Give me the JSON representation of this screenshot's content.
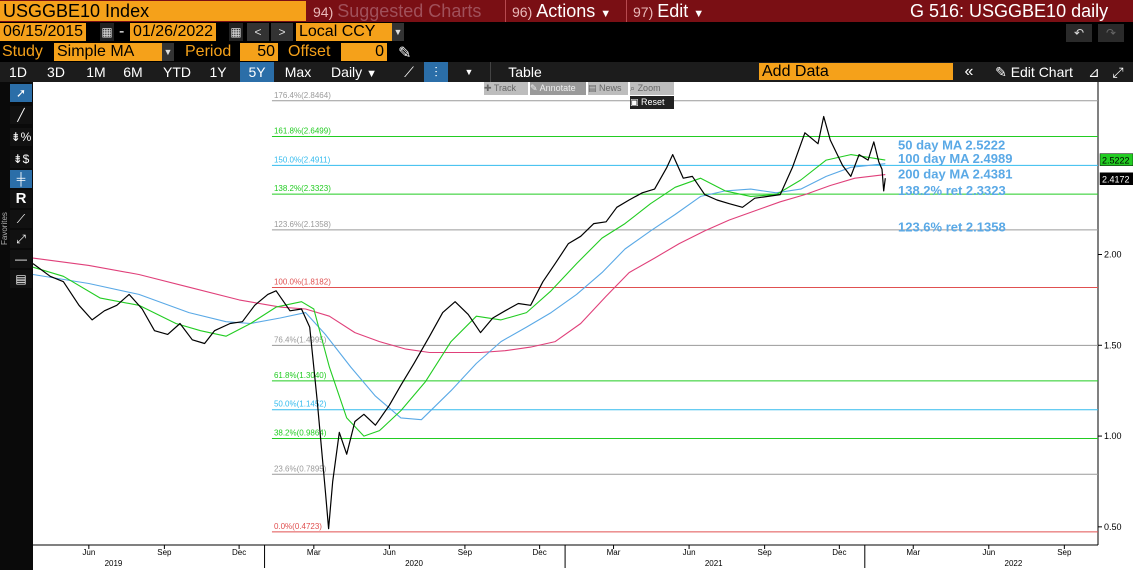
{
  "header": {
    "ticker": "USGGBE10 Index",
    "suggested_num": "94)",
    "suggested_label": "Suggested Charts",
    "actions_num": "96)",
    "actions_label": "Actions",
    "edit_num": "97)",
    "edit_label": "Edit",
    "right_title": "G 516: USGGBE10 daily"
  },
  "dates": {
    "start": "06/15/2015",
    "end": "01/26/2022",
    "separator": "-",
    "currency": "Local CCY"
  },
  "study": {
    "study_label": "Study",
    "study_value": "Simple MA",
    "period_label": "Period",
    "period_value": "50",
    "offset_label": "Offset",
    "offset_value": "0"
  },
  "toolbar": {
    "ranges": [
      "1D",
      "3D",
      "1M",
      "6M",
      "YTD",
      "1Y",
      "5Y",
      "Max"
    ],
    "selected_range": "5Y",
    "frequency": "Daily",
    "table_label": "Table",
    "add_data_placeholder": "Add Data",
    "edit_chart_label": "Edit Chart"
  },
  "float_toolbar": {
    "track": "Track",
    "annotate": "Annotate",
    "news": "News",
    "zoom": "Zoom",
    "reset": "Reset"
  },
  "side_tools": {
    "favorites_label": "Favorites"
  },
  "colors": {
    "price": "#000000",
    "ma50": "#22cc22",
    "ma100": "#5aa9e6",
    "ma200": "#e0407a",
    "header_bar": "#7a0f14",
    "accent_orange": "#f5a11a"
  },
  "chart_data": {
    "type": "line",
    "title": "USGGBE10 daily",
    "xlabel": "",
    "ylabel": "",
    "x_range": [
      "2019-03-25",
      "2022-10-12"
    ],
    "ylim": [
      0.4,
      2.95
    ],
    "y_ticks": [
      "0.50",
      "1.00",
      "1.50",
      "2.00"
    ],
    "x_ticks": [
      {
        "date": "2019-06-01",
        "label": "Jun"
      },
      {
        "date": "2019-09-01",
        "label": "Sep"
      },
      {
        "date": "2019-12-01",
        "label": "Dec"
      },
      {
        "date": "2020-03-01",
        "label": "Mar"
      },
      {
        "date": "2020-06-01",
        "label": "Jun"
      },
      {
        "date": "2020-09-01",
        "label": "Sep"
      },
      {
        "date": "2020-12-01",
        "label": "Dec"
      },
      {
        "date": "2021-03-01",
        "label": "Mar"
      },
      {
        "date": "2021-06-01",
        "label": "Jun"
      },
      {
        "date": "2021-09-01",
        "label": "Sep"
      },
      {
        "date": "2021-12-01",
        "label": "Dec"
      },
      {
        "date": "2022-03-01",
        "label": "Mar"
      },
      {
        "date": "2022-06-01",
        "label": "Jun"
      },
      {
        "date": "2022-09-01",
        "label": "Sep"
      }
    ],
    "year_labels": [
      {
        "date": "2019-07-01",
        "label": "2019"
      },
      {
        "date": "2020-07-01",
        "label": "2020"
      },
      {
        "date": "2021-07-01",
        "label": "2021"
      },
      {
        "date": "2022-07-01",
        "label": "2022"
      }
    ],
    "series": [
      {
        "name": "USGGBE10",
        "color": "#000000",
        "points": [
          [
            "2019-03-25",
            1.95
          ],
          [
            "2019-04-15",
            1.88
          ],
          [
            "2019-05-01",
            1.85
          ],
          [
            "2019-05-20",
            1.72
          ],
          [
            "2019-06-05",
            1.64
          ],
          [
            "2019-06-20",
            1.69
          ],
          [
            "2019-07-05",
            1.72
          ],
          [
            "2019-07-20",
            1.78
          ],
          [
            "2019-08-05",
            1.7
          ],
          [
            "2019-08-20",
            1.58
          ],
          [
            "2019-09-05",
            1.56
          ],
          [
            "2019-09-20",
            1.62
          ],
          [
            "2019-10-05",
            1.53
          ],
          [
            "2019-10-20",
            1.51
          ],
          [
            "2019-11-01",
            1.58
          ],
          [
            "2019-11-20",
            1.62
          ],
          [
            "2019-12-05",
            1.63
          ],
          [
            "2019-12-20",
            1.72
          ],
          [
            "2020-01-05",
            1.78
          ],
          [
            "2020-01-15",
            1.8
          ],
          [
            "2020-02-01",
            1.69
          ],
          [
            "2020-02-15",
            1.7
          ],
          [
            "2020-02-25",
            1.6
          ],
          [
            "2020-03-05",
            1.2
          ],
          [
            "2020-03-10",
            0.95
          ],
          [
            "2020-03-15",
            0.7
          ],
          [
            "2020-03-19",
            0.49
          ],
          [
            "2020-03-24",
            0.75
          ],
          [
            "2020-04-01",
            1.02
          ],
          [
            "2020-04-10",
            0.9
          ],
          [
            "2020-04-20",
            1.08
          ],
          [
            "2020-05-01",
            1.12
          ],
          [
            "2020-05-15",
            1.06
          ],
          [
            "2020-06-01",
            1.17
          ],
          [
            "2020-06-15",
            1.28
          ],
          [
            "2020-07-01",
            1.4
          ],
          [
            "2020-07-20",
            1.55
          ],
          [
            "2020-08-05",
            1.68
          ],
          [
            "2020-08-20",
            1.74
          ],
          [
            "2020-09-05",
            1.67
          ],
          [
            "2020-09-20",
            1.57
          ],
          [
            "2020-10-05",
            1.65
          ],
          [
            "2020-10-20",
            1.69
          ],
          [
            "2020-11-05",
            1.73
          ],
          [
            "2020-11-20",
            1.72
          ],
          [
            "2020-12-05",
            1.85
          ],
          [
            "2020-12-20",
            1.95
          ],
          [
            "2021-01-05",
            2.06
          ],
          [
            "2021-01-20",
            2.1
          ],
          [
            "2021-02-05",
            2.17
          ],
          [
            "2021-02-20",
            2.18
          ],
          [
            "2021-03-05",
            2.26
          ],
          [
            "2021-03-20",
            2.3
          ],
          [
            "2021-04-05",
            2.34
          ],
          [
            "2021-04-20",
            2.36
          ],
          [
            "2021-05-05",
            2.48
          ],
          [
            "2021-05-12",
            2.55
          ],
          [
            "2021-05-25",
            2.42
          ],
          [
            "2021-06-05",
            2.43
          ],
          [
            "2021-06-20",
            2.33
          ],
          [
            "2021-07-05",
            2.3
          ],
          [
            "2021-07-20",
            2.28
          ],
          [
            "2021-08-05",
            2.26
          ],
          [
            "2021-08-20",
            2.31
          ],
          [
            "2021-09-05",
            2.32
          ],
          [
            "2021-09-20",
            2.33
          ],
          [
            "2021-10-05",
            2.48
          ],
          [
            "2021-10-20",
            2.67
          ],
          [
            "2021-11-05",
            2.61
          ],
          [
            "2021-11-12",
            2.76
          ],
          [
            "2021-11-20",
            2.63
          ],
          [
            "2021-12-05",
            2.49
          ],
          [
            "2021-12-15",
            2.43
          ],
          [
            "2021-12-25",
            2.55
          ],
          [
            "2022-01-05",
            2.52
          ],
          [
            "2022-01-12",
            2.62
          ],
          [
            "2022-01-18",
            2.51
          ],
          [
            "2022-01-22",
            2.47
          ],
          [
            "2022-01-24",
            2.35
          ],
          [
            "2022-01-26",
            2.42
          ]
        ]
      },
      {
        "name": "50 day MA",
        "color": "#22cc22",
        "points": [
          [
            "2019-03-25",
            1.93
          ],
          [
            "2019-05-01",
            1.88
          ],
          [
            "2019-06-15",
            1.76
          ],
          [
            "2019-08-01",
            1.72
          ],
          [
            "2019-09-15",
            1.62
          ],
          [
            "2019-10-15",
            1.58
          ],
          [
            "2019-11-15",
            1.55
          ],
          [
            "2019-12-15",
            1.62
          ],
          [
            "2020-01-15",
            1.71
          ],
          [
            "2020-02-15",
            1.74
          ],
          [
            "2020-03-01",
            1.7
          ],
          [
            "2020-03-20",
            1.38
          ],
          [
            "2020-04-10",
            1.1
          ],
          [
            "2020-05-01",
            1.0
          ],
          [
            "2020-05-20",
            1.03
          ],
          [
            "2020-06-15",
            1.14
          ],
          [
            "2020-07-15",
            1.3
          ],
          [
            "2020-08-15",
            1.52
          ],
          [
            "2020-09-15",
            1.66
          ],
          [
            "2020-10-15",
            1.64
          ],
          [
            "2020-11-15",
            1.68
          ],
          [
            "2020-12-15",
            1.8
          ],
          [
            "2021-01-15",
            1.95
          ],
          [
            "2021-02-15",
            2.09
          ],
          [
            "2021-03-15",
            2.17
          ],
          [
            "2021-04-15",
            2.28
          ],
          [
            "2021-05-15",
            2.37
          ],
          [
            "2021-06-15",
            2.42
          ],
          [
            "2021-07-15",
            2.35
          ],
          [
            "2021-08-15",
            2.32
          ],
          [
            "2021-09-15",
            2.33
          ],
          [
            "2021-10-15",
            2.41
          ],
          [
            "2021-11-15",
            2.52
          ],
          [
            "2021-12-15",
            2.55
          ],
          [
            "2022-01-26",
            2.52
          ]
        ]
      },
      {
        "name": "100 day MA",
        "color": "#5aa9e6",
        "points": [
          [
            "2019-03-25",
            1.89
          ],
          [
            "2019-06-01",
            1.84
          ],
          [
            "2019-08-01",
            1.78
          ],
          [
            "2019-10-01",
            1.68
          ],
          [
            "2019-11-15",
            1.63
          ],
          [
            "2019-12-15",
            1.62
          ],
          [
            "2020-01-20",
            1.65
          ],
          [
            "2020-02-20",
            1.68
          ],
          [
            "2020-03-15",
            1.56
          ],
          [
            "2020-04-15",
            1.38
          ],
          [
            "2020-05-15",
            1.22
          ],
          [
            "2020-06-15",
            1.1
          ],
          [
            "2020-07-10",
            1.09
          ],
          [
            "2020-08-15",
            1.25
          ],
          [
            "2020-09-15",
            1.4
          ],
          [
            "2020-10-15",
            1.52
          ],
          [
            "2020-11-15",
            1.6
          ],
          [
            "2020-12-15",
            1.68
          ],
          [
            "2021-01-15",
            1.78
          ],
          [
            "2021-02-15",
            1.9
          ],
          [
            "2021-03-15",
            2.03
          ],
          [
            "2021-04-15",
            2.13
          ],
          [
            "2021-05-15",
            2.22
          ],
          [
            "2021-06-15",
            2.32
          ],
          [
            "2021-07-15",
            2.35
          ],
          [
            "2021-08-15",
            2.36
          ],
          [
            "2021-09-15",
            2.34
          ],
          [
            "2021-10-15",
            2.36
          ],
          [
            "2021-11-15",
            2.43
          ],
          [
            "2021-12-15",
            2.48
          ],
          [
            "2022-01-26",
            2.5
          ]
        ]
      },
      {
        "name": "200 day MA",
        "color": "#e0407a",
        "points": [
          [
            "2019-03-25",
            1.98
          ],
          [
            "2019-06-01",
            1.94
          ],
          [
            "2019-08-01",
            1.89
          ],
          [
            "2019-10-01",
            1.82
          ],
          [
            "2019-12-01",
            1.75
          ],
          [
            "2020-01-20",
            1.71
          ],
          [
            "2020-02-20",
            1.7
          ],
          [
            "2020-03-20",
            1.66
          ],
          [
            "2020-04-20",
            1.57
          ],
          [
            "2020-05-20",
            1.52
          ],
          [
            "2020-06-20",
            1.48
          ],
          [
            "2020-07-20",
            1.46
          ],
          [
            "2020-08-20",
            1.46
          ],
          [
            "2020-09-20",
            1.46
          ],
          [
            "2020-10-20",
            1.47
          ],
          [
            "2020-11-20",
            1.49
          ],
          [
            "2020-12-20",
            1.52
          ],
          [
            "2021-01-20",
            1.62
          ],
          [
            "2021-02-20",
            1.77
          ],
          [
            "2021-03-20",
            1.9
          ],
          [
            "2021-04-20",
            1.98
          ],
          [
            "2021-05-20",
            2.06
          ],
          [
            "2021-06-20",
            2.13
          ],
          [
            "2021-07-20",
            2.19
          ],
          [
            "2021-08-20",
            2.24
          ],
          [
            "2021-09-20",
            2.29
          ],
          [
            "2021-10-20",
            2.33
          ],
          [
            "2021-11-20",
            2.38
          ],
          [
            "2021-12-20",
            2.42
          ],
          [
            "2022-01-26",
            2.44
          ]
        ]
      }
    ],
    "fib_start": "2020-01-10",
    "fib_levels": [
      {
        "label": "0.0%(0.4723)",
        "value": 0.4723,
        "color": "#e05050"
      },
      {
        "label": "23.6%(0.7895)",
        "value": 0.7895,
        "color": "#9a9a9a"
      },
      {
        "label": "38.2%(0.9864)",
        "value": 0.9864,
        "color": "#22cc22"
      },
      {
        "label": "50.0%(1.1452)",
        "value": 1.1452,
        "color": "#33bbee"
      },
      {
        "label": "61.8%(1.3040)",
        "value": 1.304,
        "color": "#22cc22"
      },
      {
        "label": "76.4%(1.4995)",
        "value": 1.4995,
        "color": "#9a9a9a"
      },
      {
        "label": "100.0%(1.8182)",
        "value": 1.8182,
        "color": "#e05050"
      },
      {
        "label": "123.6%(2.1358)",
        "value": 2.1358,
        "color": "#9a9a9a"
      },
      {
        "label": "138.2%(2.3323)",
        "value": 2.3323,
        "color": "#22cc22"
      },
      {
        "label": "150.0%(2.4911)",
        "value": 2.4911,
        "color": "#33bbee"
      },
      {
        "label": "161.8%(2.6499)",
        "value": 2.6499,
        "color": "#22cc22"
      },
      {
        "label": "176.4%(2.8464)",
        "value": 2.8464,
        "color": "#9a9a9a"
      }
    ],
    "annotations": [
      {
        "text": "50 day MA 2.5222",
        "y": 2.6
      },
      {
        "text": "100 day MA 2.4989",
        "y": 2.525
      },
      {
        "text": "200 day MA 2.4381",
        "y": 2.44
      },
      {
        "text": "138.2% ret 2.3323",
        "y": 2.35
      },
      {
        "text": "123.6% ret 2.1358",
        "y": 2.15
      }
    ],
    "last_value_tags": [
      {
        "text": "2.5222",
        "value": 2.5222,
        "bg": "#22cc22",
        "fg": "#000000"
      },
      {
        "text": "2.4172",
        "value": 2.4172,
        "bg": "#000000",
        "fg": "#ffffff"
      }
    ]
  }
}
